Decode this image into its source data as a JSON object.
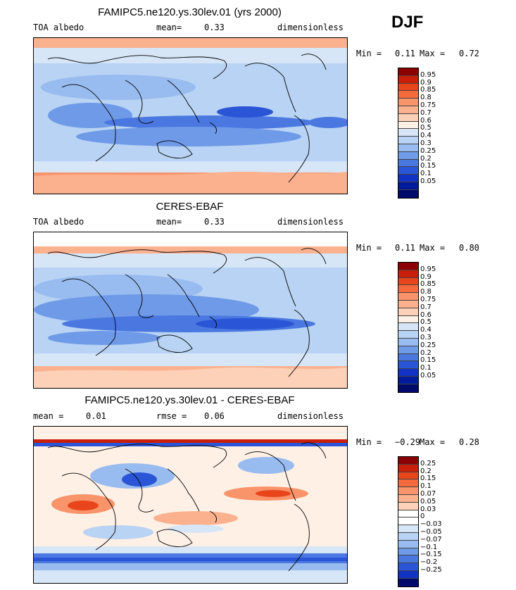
{
  "season": "DJF",
  "panels": [
    {
      "title": "FAMIPC5.ne120.ys.30lev.01 (yrs 2000)",
      "left_label": "TOA albedo",
      "mid_label": "mean=",
      "mid_value": "0.33",
      "right_label": "dimensionless",
      "min_label": "Min =",
      "min_value": "0.11",
      "max_label": "Max =",
      "max_value": "0.72",
      "legend_colors": [
        "#8b0000",
        "#c81e0a",
        "#e8461a",
        "#f46a3c",
        "#f8936a",
        "#fbb08e",
        "#fdd0b8",
        "#fff0e6",
        "#d6e6f7",
        "#b8d3f3",
        "#98bcef",
        "#6f9ae8",
        "#4a78e0",
        "#2a55d6",
        "#1232c4",
        "#001a9c",
        "#000a6a"
      ],
      "legend_ticks": [
        "0.95",
        "0.9",
        "0.85",
        "0.8",
        "0.75",
        "0.7",
        "0.6",
        "0.5",
        "0.4",
        "0.3",
        "0.25",
        "0.2",
        "0.15",
        "0.1",
        "0.05"
      ]
    },
    {
      "title": "CERES-EBAF",
      "left_label": "TOA albedo",
      "mid_label": "mean=",
      "mid_value": "0.33",
      "right_label": "dimensionless",
      "min_label": "Min =",
      "min_value": "0.11",
      "max_label": "Max =",
      "max_value": "0.80",
      "legend_colors": [
        "#8b0000",
        "#c81e0a",
        "#e8461a",
        "#f46a3c",
        "#f8936a",
        "#fbb08e",
        "#fdd0b8",
        "#fff0e6",
        "#d6e6f7",
        "#b8d3f3",
        "#98bcef",
        "#6f9ae8",
        "#4a78e0",
        "#2a55d6",
        "#1232c4",
        "#001a9c",
        "#000a6a"
      ],
      "legend_ticks": [
        "0.95",
        "0.9",
        "0.85",
        "0.8",
        "0.75",
        "0.7",
        "0.6",
        "0.5",
        "0.4",
        "0.3",
        "0.25",
        "0.2",
        "0.15",
        "0.1",
        "0.05"
      ]
    },
    {
      "title": "FAMIPC5.ne120.ys.30lev.01 - CERES-EBAF",
      "left_label": "mean =",
      "left_value": "0.01",
      "mid_label": "rmse =",
      "mid_value": "0.06",
      "right_label": "dimensionless",
      "min_label": "Min =",
      "min_value": "−0.29",
      "max_label": "Max =",
      "max_value": "0.28",
      "legend_colors": [
        "#8b0000",
        "#c81e0a",
        "#e8461a",
        "#f46a3c",
        "#f8936a",
        "#fbb08e",
        "#fdd0b8",
        "#ffffff",
        "#ffffff",
        "#d6e6f7",
        "#b8d3f3",
        "#98bcef",
        "#6f9ae8",
        "#4a78e0",
        "#2a55d6",
        "#1232c4",
        "#000a6a"
      ],
      "legend_ticks": [
        "0.25",
        "0.2",
        "0.15",
        "0.1",
        "0.07",
        "0.05",
        "0.03",
        "0",
        "−0.03",
        "−0.05",
        "−0.07",
        "−0.1",
        "−0.15",
        "−0.2",
        "−0.25"
      ]
    }
  ]
}
